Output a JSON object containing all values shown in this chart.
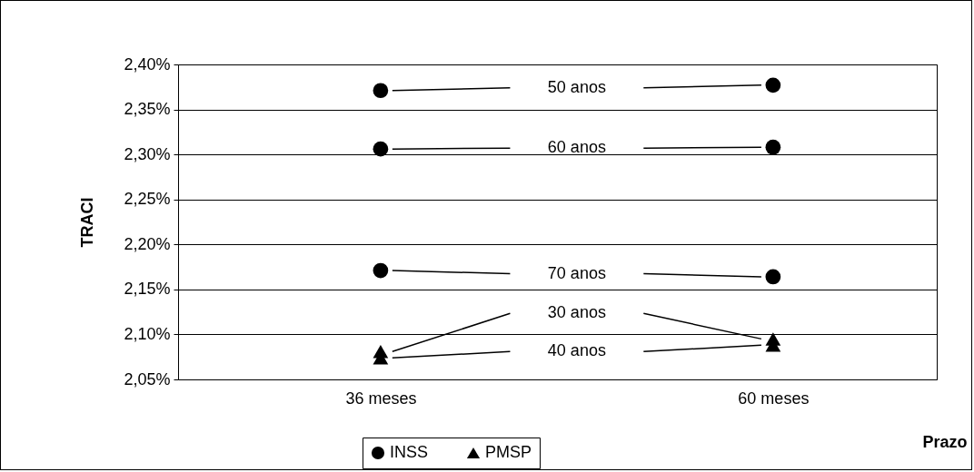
{
  "chart_data": {
    "type": "scatter",
    "ylabel": "TRACI",
    "xlabel": "Prazo",
    "categories": [
      "36 meses",
      "60 meses"
    ],
    "series": [
      {
        "name": "INSS",
        "color": "#000000",
        "marker": "circle",
        "x": [
          "36 meses",
          "36 meses",
          "36 meses",
          "60 meses",
          "60 meses",
          "60 meses"
        ],
        "values": [
          2.371,
          2.306,
          2.171,
          2.377,
          2.308,
          2.164
        ]
      },
      {
        "name": "PMSP",
        "color": "#000000",
        "marker": "triangle",
        "x": [
          "36 meses",
          "36 meses",
          "60 meses",
          "60 meses"
        ],
        "values": [
          2.081,
          2.074,
          2.095,
          2.088
        ]
      }
    ],
    "annotations": [
      "50 anos",
      "60 anos",
      "70 anos",
      "30 anos",
      "40 anos"
    ],
    "ylim": [
      2.05,
      2.4
    ],
    "yticks": [
      {
        "value": 2.05,
        "label": "2,05%"
      },
      {
        "value": 2.1,
        "label": "2,10%"
      },
      {
        "value": 2.15,
        "label": "2,15%"
      },
      {
        "value": 2.2,
        "label": "2,20%"
      },
      {
        "value": 2.25,
        "label": "2,25%"
      },
      {
        "value": 2.3,
        "label": "2,30%"
      },
      {
        "value": 2.35,
        "label": "2,35%"
      },
      {
        "value": 2.4,
        "label": "2,40%"
      }
    ],
    "grid": "y",
    "legend": "bottom"
  }
}
